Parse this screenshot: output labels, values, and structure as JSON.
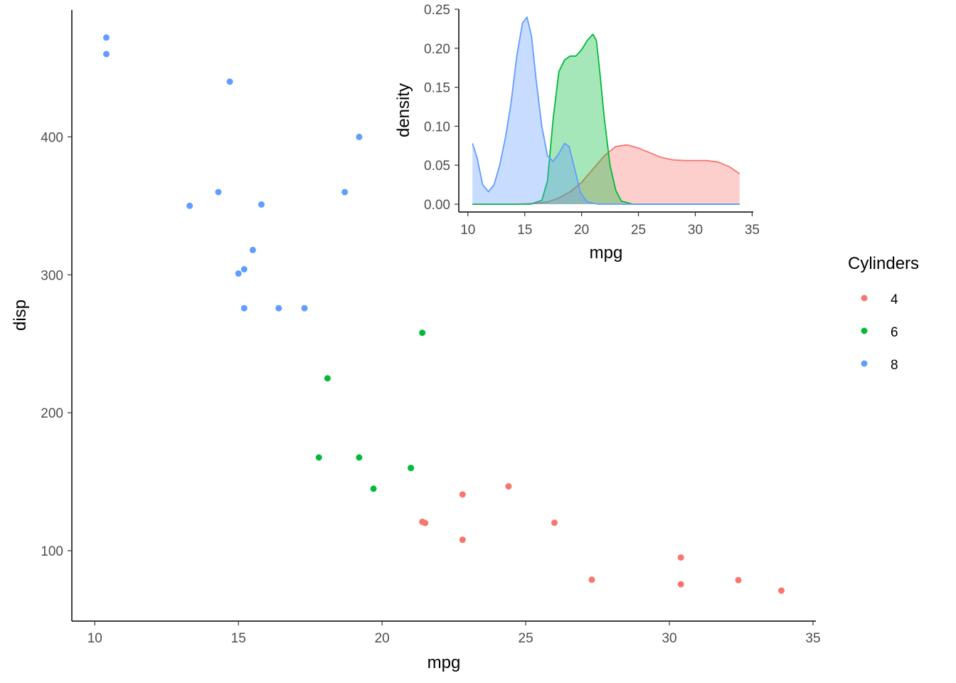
{
  "chart_data": [
    {
      "type": "scatter",
      "title": "",
      "xlabel": "mpg",
      "ylabel": "disp",
      "xlim": [
        9.2,
        35.1
      ],
      "ylim": [
        49,
        492
      ],
      "xticks": [
        10,
        15,
        20,
        25,
        30,
        35
      ],
      "yticks": [
        100,
        200,
        300,
        400
      ],
      "grid": false,
      "series": [
        {
          "name": "4",
          "color": "#F8766D",
          "points": [
            {
              "x": 22.8,
              "y": 108
            },
            {
              "x": 24.4,
              "y": 146.7
            },
            {
              "x": 22.8,
              "y": 140.8
            },
            {
              "x": 32.4,
              "y": 78.7
            },
            {
              "x": 30.4,
              "y": 75.7
            },
            {
              "x": 33.9,
              "y": 71.1
            },
            {
              "x": 21.5,
              "y": 120.1
            },
            {
              "x": 27.3,
              "y": 79
            },
            {
              "x": 26.0,
              "y": 120.3
            },
            {
              "x": 30.4,
              "y": 95.1
            },
            {
              "x": 21.4,
              "y": 121
            }
          ]
        },
        {
          "name": "6",
          "color": "#00BA38",
          "points": [
            {
              "x": 21.0,
              "y": 160
            },
            {
              "x": 21.0,
              "y": 160
            },
            {
              "x": 21.4,
              "y": 258
            },
            {
              "x": 18.1,
              "y": 225
            },
            {
              "x": 19.2,
              "y": 167.6
            },
            {
              "x": 17.8,
              "y": 167.6
            },
            {
              "x": 19.7,
              "y": 145
            }
          ]
        },
        {
          "name": "8",
          "color": "#619CFF",
          "points": [
            {
              "x": 18.7,
              "y": 360
            },
            {
              "x": 14.3,
              "y": 360
            },
            {
              "x": 16.4,
              "y": 275.8
            },
            {
              "x": 17.3,
              "y": 275.8
            },
            {
              "x": 15.2,
              "y": 275.8
            },
            {
              "x": 10.4,
              "y": 472
            },
            {
              "x": 10.4,
              "y": 460
            },
            {
              "x": 14.7,
              "y": 440
            },
            {
              "x": 15.5,
              "y": 318
            },
            {
              "x": 15.2,
              "y": 304
            },
            {
              "x": 13.3,
              "y": 350
            },
            {
              "x": 19.2,
              "y": 400
            },
            {
              "x": 15.8,
              "y": 351
            },
            {
              "x": 15.0,
              "y": 301
            }
          ]
        }
      ]
    },
    {
      "type": "area",
      "title": "",
      "xlabel": "mpg",
      "ylabel": "density",
      "xlim": [
        9.2,
        35.1
      ],
      "ylim": [
        -0.01,
        0.25
      ],
      "xticks": [
        10,
        15,
        20,
        25,
        30,
        35
      ],
      "yticks": [
        0.0,
        0.05,
        0.1,
        0.15,
        0.2,
        0.25
      ],
      "ytick_labels": [
        "0.00",
        "0.05",
        "0.10",
        "0.15",
        "0.20",
        "0.25"
      ],
      "grid": false,
      "series": [
        {
          "name": "4",
          "color": "#F8766D",
          "x": [
            10.4,
            14,
            16,
            17,
            18,
            19,
            20,
            21,
            22,
            23,
            24,
            25,
            26,
            27,
            28,
            29,
            30,
            31,
            32,
            33,
            33.9
          ],
          "y": [
            0,
            0,
            0.001,
            0.003,
            0.008,
            0.016,
            0.028,
            0.045,
            0.062,
            0.074,
            0.076,
            0.072,
            0.066,
            0.06,
            0.057,
            0.056,
            0.056,
            0.056,
            0.054,
            0.048,
            0.039
          ]
        },
        {
          "name": "6",
          "color": "#00BA38",
          "x": [
            10.4,
            15.5,
            16.5,
            17,
            17.5,
            18,
            18.5,
            19,
            19.5,
            20,
            20.5,
            21,
            21.3,
            21.6,
            22,
            22.5,
            23,
            23.5,
            24.5,
            33.9
          ],
          "y": [
            0,
            0,
            0.005,
            0.03,
            0.11,
            0.17,
            0.185,
            0.19,
            0.19,
            0.198,
            0.21,
            0.218,
            0.21,
            0.17,
            0.11,
            0.05,
            0.018,
            0.004,
            0,
            0
          ]
        },
        {
          "name": "8",
          "color": "#619CFF",
          "x": [
            10.4,
            10.8,
            11.3,
            11.8,
            12.3,
            12.8,
            13.3,
            13.8,
            14.3,
            14.8,
            15.2,
            15.6,
            16.0,
            16.5,
            17.0,
            17.5,
            18.0,
            18.5,
            18.9,
            19.4,
            19.9,
            20.5,
            21.5,
            33.9
          ],
          "y": [
            0.078,
            0.06,
            0.025,
            0.016,
            0.025,
            0.05,
            0.085,
            0.13,
            0.19,
            0.232,
            0.24,
            0.215,
            0.16,
            0.1,
            0.062,
            0.055,
            0.065,
            0.078,
            0.074,
            0.045,
            0.015,
            0.003,
            0,
            0
          ]
        }
      ]
    }
  ],
  "legend": {
    "title": "Cylinders",
    "position": "right",
    "items": [
      {
        "label": "4",
        "color": "#F8766D"
      },
      {
        "label": "6",
        "color": "#00BA38"
      },
      {
        "label": "8",
        "color": "#619CFF"
      }
    ]
  }
}
